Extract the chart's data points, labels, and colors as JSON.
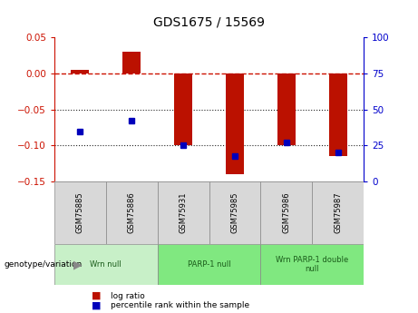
{
  "title": "GDS1675 / 15569",
  "samples": [
    "GSM75885",
    "GSM75886",
    "GSM75931",
    "GSM75985",
    "GSM75986",
    "GSM75987"
  ],
  "log_ratio": [
    0.005,
    0.03,
    -0.1,
    -0.14,
    -0.1,
    -0.115
  ],
  "percentile_rank": [
    35,
    42,
    25,
    18,
    27,
    20
  ],
  "groups": [
    {
      "label": "Wrn null",
      "start": 0,
      "end": 2,
      "color": "#c8f0c8"
    },
    {
      "label": "PARP-1 null",
      "start": 2,
      "end": 4,
      "color": "#80e880"
    },
    {
      "label": "Wrn PARP-1 double\nnull",
      "start": 4,
      "end": 6,
      "color": "#80e880"
    }
  ],
  "ylim_left": [
    -0.15,
    0.05
  ],
  "ylim_right": [
    0,
    100
  ],
  "yticks_left": [
    -0.15,
    -0.1,
    -0.05,
    0,
    0.05
  ],
  "yticks_right": [
    0,
    25,
    50,
    75,
    100
  ],
  "bar_color": "#bb1100",
  "dot_color": "#0000bb",
  "zero_line_color": "#cc1100",
  "grid_color": "#222222",
  "left_axis_color": "#cc1100",
  "right_axis_color": "#0000cc",
  "bar_width": 0.35,
  "figsize": [
    4.61,
    3.45
  ],
  "dpi": 100
}
